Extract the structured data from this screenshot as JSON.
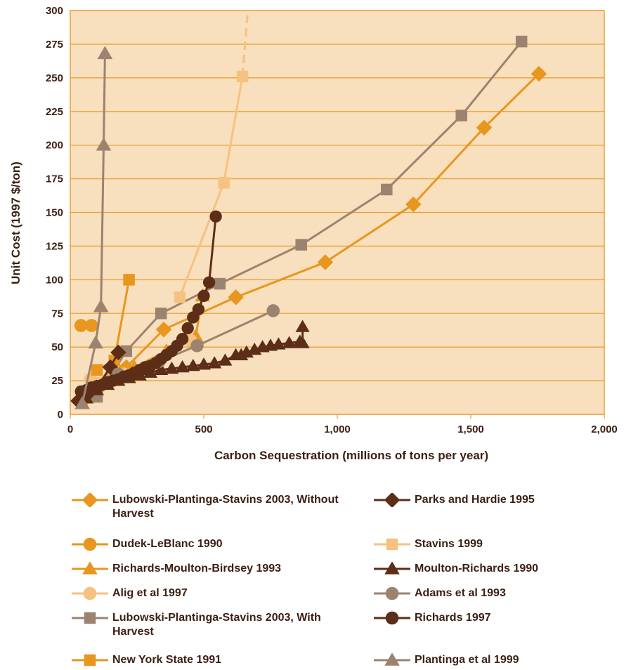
{
  "chart_data": {
    "type": "line",
    "xlabel": "Carbon Sequestration (millions of tons per year)",
    "ylabel": "Unit Cost (1997 $/ton)",
    "xlim": [
      0,
      2000
    ],
    "ylim": [
      0,
      300
    ],
    "xticks": [
      0,
      500,
      1000,
      1500,
      2000
    ],
    "xtick_labels": [
      "0",
      "500",
      "1,000",
      "1,500",
      "2,000"
    ],
    "yticks": [
      0,
      25,
      50,
      75,
      100,
      125,
      150,
      175,
      200,
      225,
      250,
      275,
      300
    ],
    "ytick_labels": [
      "0",
      "25",
      "50",
      "75",
      "100",
      "125",
      "150",
      "175",
      "200",
      "225",
      "250",
      "275",
      "300"
    ],
    "grid": "horizontal",
    "background": "#f8dfbd",
    "grid_color": "#e8a23a",
    "series": [
      {
        "name": "Lubowski-Plantinga-Stavins 2003, Without Harvest",
        "color": "#e8961e",
        "marker": "diamond",
        "x": [
          50,
          120,
          210,
          350,
          620,
          955,
          1285,
          1550,
          1755
        ],
        "y": [
          10,
          22,
          35,
          63,
          87,
          113,
          156,
          213,
          253
        ]
      },
      {
        "name": "Dudek-LeBlanc 1990",
        "color": "#e8961e",
        "marker": "circle",
        "x": [
          40,
          80
        ],
        "y": [
          66,
          66
        ]
      },
      {
        "name": "Richards-Moulton-Birdsey 1993",
        "color": "#e8961e",
        "marker": "triangle",
        "x": [
          60,
          140,
          240,
          360,
          470,
          495
        ],
        "y": [
          12,
          25,
          35,
          47,
          58,
          88
        ]
      },
      {
        "name": "Alig et al 1997",
        "color": "#f5c27f",
        "marker": "circle",
        "x": [
          75,
          200,
          330,
          450
        ],
        "y": [
          26,
          30,
          38,
          55
        ]
      },
      {
        "name": "Lubowski-Plantinga-Stavins 2003, With Harvest",
        "color": "#9c8370",
        "marker": "square",
        "x": [
          100,
          210,
          340,
          560,
          865,
          1185,
          1465,
          1690
        ],
        "y": [
          13,
          47,
          75,
          97,
          126,
          167,
          222,
          277
        ]
      },
      {
        "name": "New York State 1991",
        "color": "#e8961e",
        "marker": "square",
        "x": [
          100,
          165,
          220
        ],
        "y": [
          33,
          40,
          100
        ]
      },
      {
        "name": "Parks and Hardie 1995",
        "color": "#5c2e17",
        "marker": "diamond",
        "x": [
          30,
          60,
          100,
          150,
          180
        ],
        "y": [
          10,
          14,
          20,
          35,
          46
        ]
      },
      {
        "name": "Stavins 1999",
        "color": "#f5c27f",
        "marker": "square",
        "x": [
          410,
          575,
          645
        ],
        "y": [
          87,
          172,
          251
        ],
        "dashed_tail": [
          [
            645,
            251
          ],
          [
            665,
            300
          ]
        ]
      },
      {
        "name": "Moulton-Richards 1990",
        "color": "#5c2e17",
        "marker": "triangle",
        "x": [
          60,
          100,
          140,
          180,
          220,
          260,
          300,
          340,
          380,
          420,
          460,
          500,
          540,
          580,
          620,
          640,
          660,
          690,
          720,
          750,
          780,
          820,
          860,
          870,
          870
        ],
        "y": [
          12,
          18,
          22,
          25,
          27,
          29,
          31,
          33,
          34,
          35,
          36,
          37,
          38,
          40,
          44,
          44,
          46,
          48,
          50,
          51,
          52,
          53,
          54,
          53,
          65
        ]
      },
      {
        "name": "Adams et al 1993",
        "color": "#9c8370",
        "marker": "circle",
        "x": [
          180,
          330,
          475,
          760
        ],
        "y": [
          30,
          39,
          51,
          77
        ]
      },
      {
        "name": "Richards 1997",
        "color": "#5c2e17",
        "marker": "circle",
        "x": [
          40,
          60,
          80,
          100,
          120,
          140,
          160,
          180,
          200,
          220,
          240,
          260,
          280,
          300,
          320,
          340,
          360,
          380,
          400,
          420,
          440,
          460,
          480,
          500,
          520,
          545
        ],
        "y": [
          17,
          18,
          20,
          21,
          22,
          24,
          25,
          26,
          28,
          29,
          31,
          33,
          35,
          36,
          38,
          41,
          44,
          47,
          51,
          56,
          64,
          72,
          78,
          88,
          98,
          147
        ]
      },
      {
        "name": "Plantinga et al 1999",
        "color": "#9c8370",
        "marker": "triangle",
        "x": [
          45,
          95,
          115,
          125,
          130
        ],
        "y": [
          8,
          53,
          80,
          200,
          268
        ]
      }
    ]
  }
}
